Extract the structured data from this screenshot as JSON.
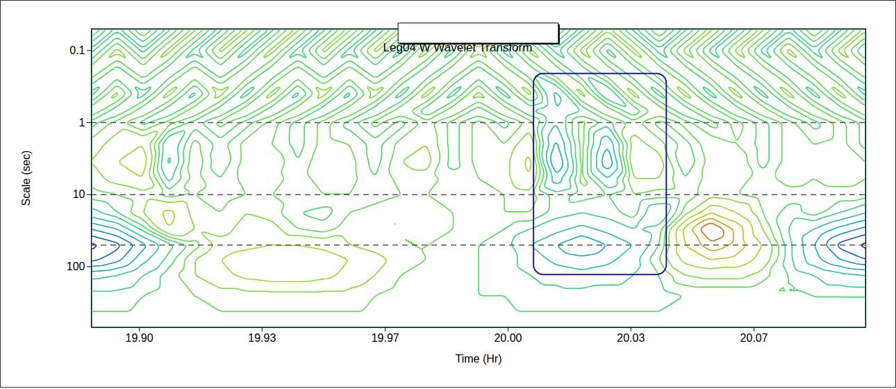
{
  "chart_data": {
    "type": "contour",
    "title": "Leg04 W Wavelet Transform",
    "x_label": "Time (Hr)",
    "y_label": "Scale (sec)",
    "log": "y",
    "xlim": [
      19.887,
      20.097
    ],
    "xticks": [
      {
        "value": 19.9,
        "label": "19.90"
      },
      {
        "value": 19.9333,
        "label": "19.93"
      },
      {
        "value": 19.9667,
        "label": "19.97"
      },
      {
        "value": 20.0,
        "label": "20.00"
      },
      {
        "value": 20.0333,
        "label": "20.03"
      },
      {
        "value": 20.0667,
        "label": "20.07"
      }
    ],
    "ylim": [
      0.05,
      700
    ],
    "yticks": [
      0.1,
      1,
      10,
      100
    ],
    "reference_lines": [
      1,
      10,
      50
    ],
    "box": {
      "x": [
        20.007,
        20.043
      ],
      "y": [
        0.21,
        130
      ],
      "color": "#1c1c8c"
    },
    "zlim": [
      -1,
      1
    ],
    "colors": [
      "#1010a0",
      "#00b8f0",
      "#40e040",
      "#e8e000",
      "#e00000"
    ],
    "thresholds": [
      -0.9,
      -0.75,
      -0.6,
      -0.45,
      -0.3,
      -0.15,
      -0.05,
      0.05,
      0.15,
      0.3,
      0.45,
      0.6,
      0.75,
      0.9
    ],
    "x": [
      19.887,
      19.894,
      19.901,
      19.908,
      19.915,
      19.922,
      19.929,
      19.936,
      19.943,
      19.95,
      19.957,
      19.964,
      19.971,
      19.978,
      19.985,
      19.992,
      19.999,
      20.006,
      20.013,
      20.02,
      20.027,
      20.034,
      20.041,
      20.048,
      20.055,
      20.062,
      20.069,
      20.076,
      20.083,
      20.09,
      20.097
    ],
    "y": [
      0.05,
      0.1,
      0.2,
      0.4,
      0.7,
      1,
      2,
      3.5,
      6,
      10,
      18,
      30,
      50,
      80,
      130,
      250,
      700
    ],
    "values": [
      [
        0.2,
        -0.2,
        0.2,
        -0.2,
        0.2,
        -0.2,
        0.2,
        -0.2,
        0.2,
        -0.2,
        0.2,
        -0.2,
        0.2,
        -0.2,
        0.2,
        -0.2,
        0.2,
        -0.2,
        0.2,
        -0.2,
        0.2,
        -0.2,
        0.2,
        -0.2,
        0.2,
        -0.2,
        0.2,
        -0.2,
        0.2,
        -0.2,
        0.2
      ],
      [
        -0.2,
        0.2,
        -0.2,
        0.2,
        -0.2,
        0.2,
        -0.2,
        0.2,
        -0.2,
        0.2,
        -0.2,
        0.2,
        -0.2,
        0.2,
        -0.2,
        0.2,
        -0.2,
        0.2,
        -0.2,
        0.2,
        -0.2,
        0.2,
        -0.2,
        0.2,
        -0.2,
        0.2,
        -0.2,
        0.2,
        -0.2,
        0.2,
        -0.2
      ],
      [
        0.15,
        -0.15,
        0.15,
        -0.15,
        0.15,
        -0.15,
        0.15,
        -0.15,
        0.15,
        -0.15,
        0.15,
        -0.15,
        0.15,
        -0.15,
        0.15,
        -0.15,
        0.15,
        -0.15,
        0.15,
        -0.15,
        0.15,
        -0.15,
        0.15,
        -0.15,
        0.15,
        -0.15,
        0.15,
        -0.15,
        0.15,
        -0.15,
        0.15
      ],
      [
        -0.2,
        0.2,
        -0.2,
        0.2,
        -0.2,
        0.2,
        -0.2,
        0.2,
        -0.2,
        0.2,
        -0.2,
        0.2,
        -0.2,
        0.2,
        -0.2,
        0.2,
        -0.2,
        0.2,
        -0.35,
        0.2,
        -0.3,
        0.2,
        -0.2,
        0.2,
        -0.2,
        0.2,
        -0.2,
        0.2,
        -0.2,
        0.2,
        -0.2
      ],
      [
        0.15,
        -0.15,
        0.15,
        -0.15,
        0.15,
        -0.15,
        0.15,
        -0.15,
        0.15,
        -0.15,
        0.15,
        -0.15,
        0.15,
        -0.15,
        0.15,
        -0.15,
        0.15,
        -0.15,
        -0.3,
        -0.15,
        0.15,
        -0.15,
        0.15,
        -0.15,
        0.15,
        -0.15,
        0.15,
        -0.15,
        0.15,
        -0.15,
        0.15
      ],
      [
        -0.1,
        0.1,
        -0.1,
        0.1,
        -0.1,
        0.1,
        -0.1,
        0.1,
        -0.1,
        0.1,
        -0.1,
        0.1,
        -0.1,
        0.1,
        -0.1,
        0.1,
        -0.1,
        0.1,
        -0.3,
        0.1,
        -0.1,
        0.1,
        -0.1,
        0.1,
        -0.1,
        0.1,
        -0.1,
        0.1,
        -0.1,
        0.1,
        -0.1
      ],
      [
        0.1,
        0.2,
        0.3,
        -0.3,
        0.1,
        -0.1,
        0.1,
        0.05,
        -0.1,
        0.1,
        0.05,
        -0.1,
        0.1,
        0.15,
        -0.1,
        0.1,
        0.05,
        0.25,
        -0.5,
        0.1,
        -0.45,
        0.2,
        0.1,
        -0.1,
        0.15,
        0.05,
        -0.1,
        0.1,
        0.05,
        0.1,
        -0.1
      ],
      [
        0.15,
        0.3,
        0.4,
        -0.35,
        0.15,
        -0.15,
        0.1,
        0.15,
        -0.05,
        0.15,
        0.1,
        -0.1,
        0.15,
        0.2,
        -0.1,
        0.1,
        0.1,
        0.35,
        -0.65,
        0.1,
        -0.6,
        0.25,
        0.2,
        -0.15,
        0.1,
        0.15,
        -0.1,
        0.1,
        0.1,
        0.15,
        0.05
      ],
      [
        0.1,
        0.2,
        0.3,
        -0.2,
        0.1,
        -0.05,
        0.1,
        0.1,
        0,
        0.1,
        0.1,
        -0.05,
        0.1,
        0.1,
        0,
        0.05,
        0.1,
        0.3,
        -0.4,
        0.1,
        -0.3,
        0.15,
        0.15,
        -0.05,
        0.1,
        0.1,
        0,
        0.1,
        0.05,
        0.1,
        0.05
      ],
      [
        0,
        0.05,
        0.1,
        0,
        0.05,
        0,
        0.05,
        0.05,
        0,
        0.05,
        0.05,
        0,
        0.05,
        0.05,
        0,
        0,
        0.05,
        0.1,
        -0.1,
        0,
        -0.05,
        0.05,
        0,
        0,
        0.1,
        0.05,
        0,
        0,
        0,
        0,
        0
      ],
      [
        -0.2,
        -0.05,
        0.15,
        0.35,
        0.1,
        0.05,
        0.15,
        0.1,
        -0.05,
        -0.1,
        0.05,
        0.1,
        0.05,
        0.15,
        0.05,
        0,
        0.05,
        0.05,
        -0.1,
        -0.15,
        -0.1,
        0,
        -0.3,
        0.1,
        0.45,
        0.3,
        0.05,
        -0.1,
        0,
        -0.15,
        -0.3
      ],
      [
        -0.6,
        -0.45,
        -0.1,
        0.3,
        0.15,
        0.1,
        0.2,
        0.2,
        0.05,
        0,
        0.1,
        0.05,
        0.05,
        0.15,
        0.05,
        0,
        -0.05,
        -0.15,
        -0.25,
        -0.35,
        -0.25,
        -0.15,
        -0.1,
        0.5,
        0.95,
        0.55,
        0.15,
        -0.15,
        -0.3,
        -0.5,
        -0.65
      ],
      [
        -0.95,
        -0.8,
        -0.5,
        -0.2,
        0,
        0.2,
        0.25,
        0.3,
        0.3,
        0.25,
        0.15,
        0.1,
        0.05,
        0.05,
        0,
        -0.05,
        -0.1,
        -0.3,
        -0.45,
        -0.6,
        -0.45,
        -0.3,
        -0.05,
        0.45,
        0.7,
        0.55,
        0.3,
        -0.1,
        -0.45,
        -0.8,
        -0.95
      ],
      [
        -0.8,
        -0.65,
        -0.35,
        -0.1,
        0.15,
        0.3,
        0.4,
        0.45,
        0.45,
        0.4,
        0.3,
        0.2,
        0.1,
        0.05,
        0,
        -0.05,
        -0.1,
        -0.2,
        -0.35,
        -0.4,
        -0.35,
        -0.2,
        0.05,
        0.35,
        0.45,
        0.4,
        0.25,
        -0.1,
        -0.4,
        -0.6,
        -0.75
      ],
      [
        -0.35,
        -0.3,
        -0.15,
        0,
        0.15,
        0.25,
        0.35,
        0.4,
        0.4,
        0.35,
        0.25,
        0.15,
        0.05,
        0,
        0,
        -0.05,
        -0.1,
        -0.15,
        -0.2,
        -0.25,
        -0.2,
        -0.15,
        -0.05,
        0.15,
        0.2,
        0.2,
        0.1,
        -0.05,
        -0.15,
        -0.25,
        -0.3
      ],
      [
        -0.1,
        -0.1,
        -0.05,
        0,
        0.05,
        0.1,
        0.1,
        0.1,
        0.1,
        0.1,
        0.1,
        0.05,
        0,
        0,
        0,
        -0.05,
        -0.05,
        -0.1,
        -0.1,
        -0.1,
        -0.1,
        -0.1,
        -0.1,
        -0.05,
        -0.05,
        -0.05,
        -0.05,
        -0.05,
        -0.05,
        -0.05,
        -0.05
      ],
      [
        0,
        0,
        0,
        0,
        0,
        0,
        0,
        0,
        0,
        0,
        0,
        0,
        0,
        0,
        0,
        0,
        0,
        0,
        0,
        0,
        0,
        0,
        0,
        0,
        0,
        0,
        0,
        0,
        0,
        0,
        0
      ]
    ]
  }
}
